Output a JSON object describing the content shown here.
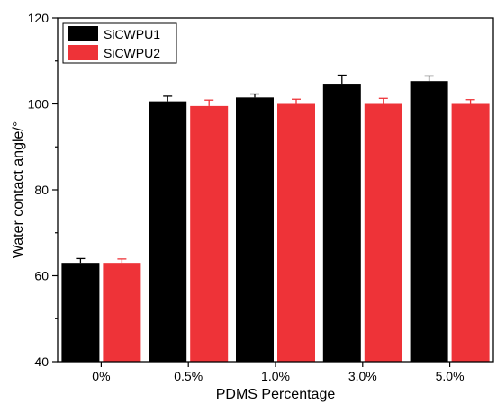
{
  "chart_data": {
    "type": "bar",
    "title": "",
    "xlabel": "PDMS Percentage",
    "ylabel": "Water contact angle/°",
    "ylim": [
      40,
      120
    ],
    "yticks": [
      40,
      60,
      80,
      100,
      120
    ],
    "categories": [
      "0%",
      "0.5%",
      "1.0%",
      "3.0%",
      "5.0%"
    ],
    "legend_position": "top-left",
    "series": [
      {
        "name": "SiCWPU1",
        "color": "#000000",
        "values": [
          63.0,
          100.6,
          101.5,
          104.7,
          105.3
        ],
        "errors": [
          1.0,
          1.2,
          0.8,
          2.0,
          1.2
        ]
      },
      {
        "name": "SiCWPU2",
        "color": "#ee3338",
        "values": [
          63.0,
          99.5,
          100.0,
          100.0,
          100.0
        ],
        "errors": [
          0.9,
          1.4,
          1.1,
          1.3,
          1.0
        ]
      }
    ]
  }
}
